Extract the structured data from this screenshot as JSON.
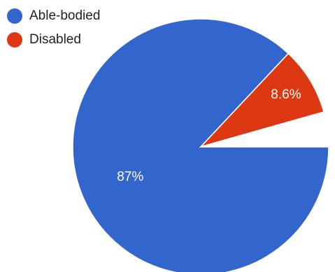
{
  "chart_data": {
    "type": "pie",
    "legend_position": "top-left",
    "slices": [
      {
        "name": "Able-bodied",
        "value": 87,
        "label": "87%",
        "color": "#3366CC"
      },
      {
        "name": "Disabled",
        "value": 8.6,
        "label": "8.6%",
        "color": "#DC3912"
      },
      {
        "name": "",
        "value": 4.4,
        "label": "",
        "color": "#FFFFFF"
      }
    ]
  }
}
